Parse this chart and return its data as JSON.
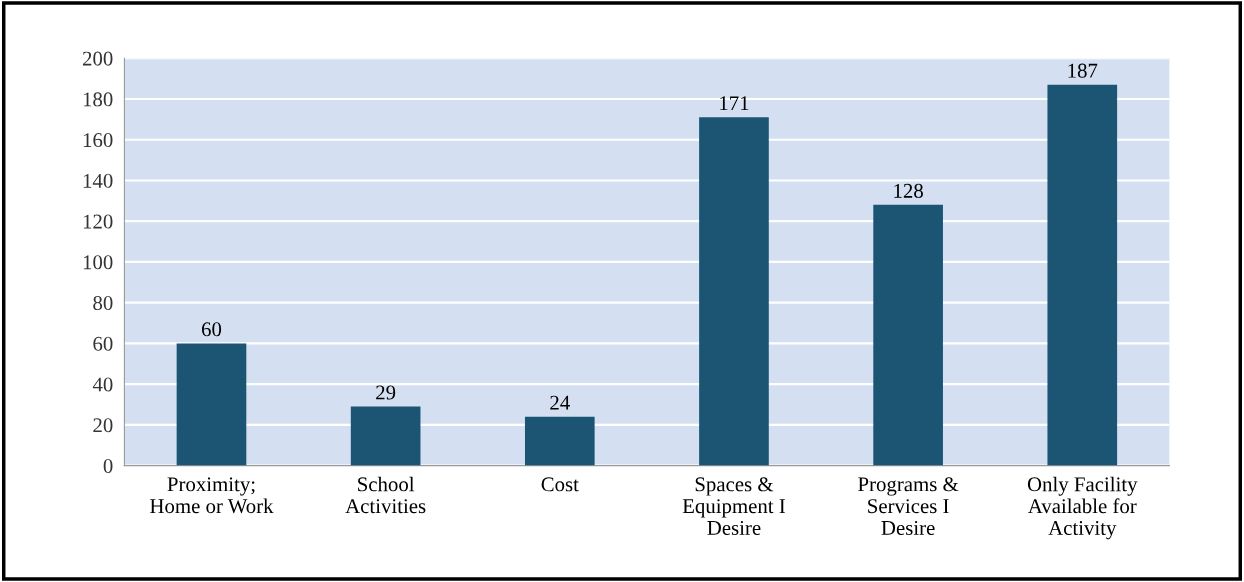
{
  "chart_data": {
    "type": "bar",
    "categories": [
      "Proximity;\nHome or Work",
      "School\nActivities",
      "Cost",
      "Spaces &\nEquipment I\nDesire",
      "Programs &\nServices I\nDesire",
      "Only Facility\nAvailable for\nActivity"
    ],
    "values": [
      60,
      29,
      24,
      171,
      128,
      187
    ],
    "color": "#1b5573",
    "ylim": [
      0,
      200
    ],
    "yticks": [
      0,
      20,
      40,
      60,
      80,
      100,
      120,
      140,
      160,
      180,
      200
    ],
    "grid": "y",
    "data_labels": true,
    "legend": false
  }
}
